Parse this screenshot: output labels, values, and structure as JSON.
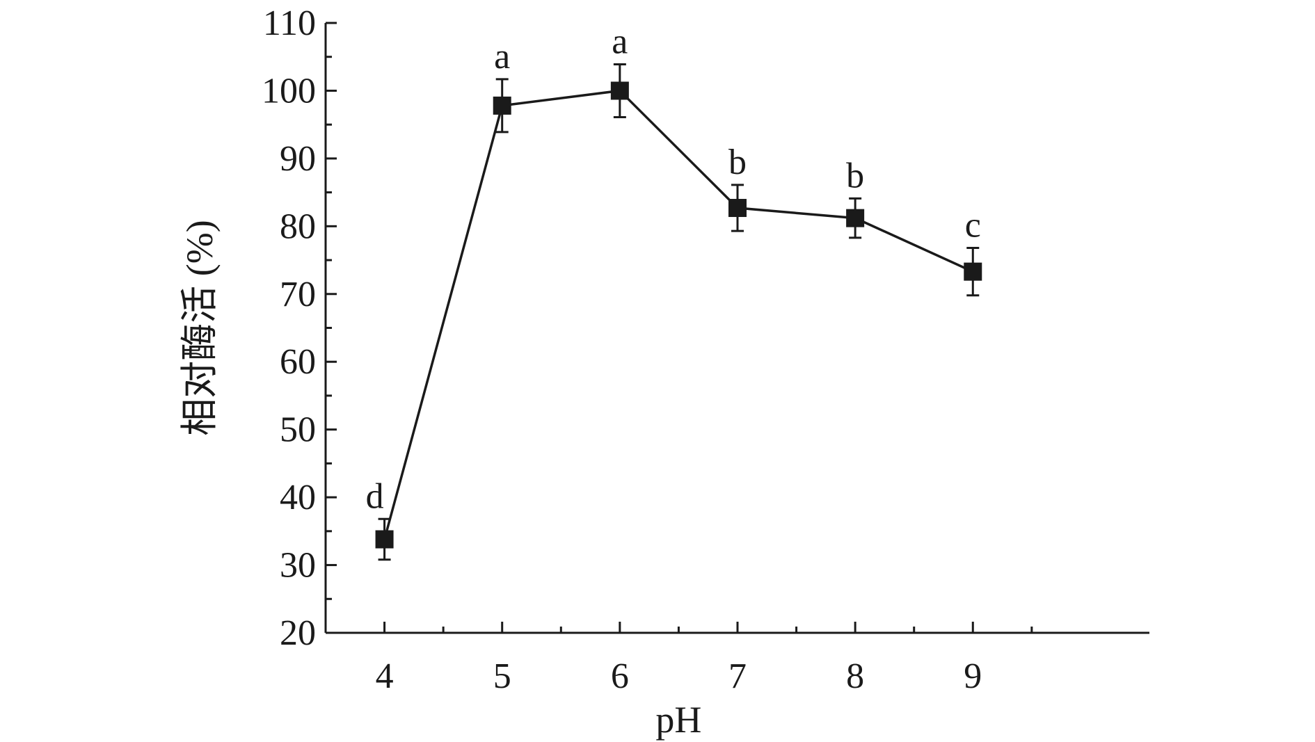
{
  "chart_data": {
    "type": "line",
    "title": "",
    "xlabel": "pH",
    "ylabel": "相对酶活 (%)",
    "x": [
      4,
      5,
      6,
      7,
      8,
      9
    ],
    "xticks": [
      "4",
      "5",
      "6",
      "7",
      "8",
      "9"
    ],
    "xlim": [
      3.5,
      10.5
    ],
    "ylim": [
      20,
      110
    ],
    "yticks": [
      "20",
      "30",
      "40",
      "50",
      "60",
      "70",
      "80",
      "90",
      "100",
      "110"
    ],
    "grid": false,
    "series": [
      {
        "values": [
          33.8,
          97.8,
          100.0,
          82.7,
          81.2,
          73.3
        ],
        "errors": [
          3.0,
          3.9,
          3.9,
          3.4,
          2.9,
          3.5
        ],
        "significance": [
          "d",
          "a",
          "a",
          "b",
          "b",
          "c"
        ],
        "color": "#1a1a1a",
        "marker": "square"
      }
    ]
  }
}
